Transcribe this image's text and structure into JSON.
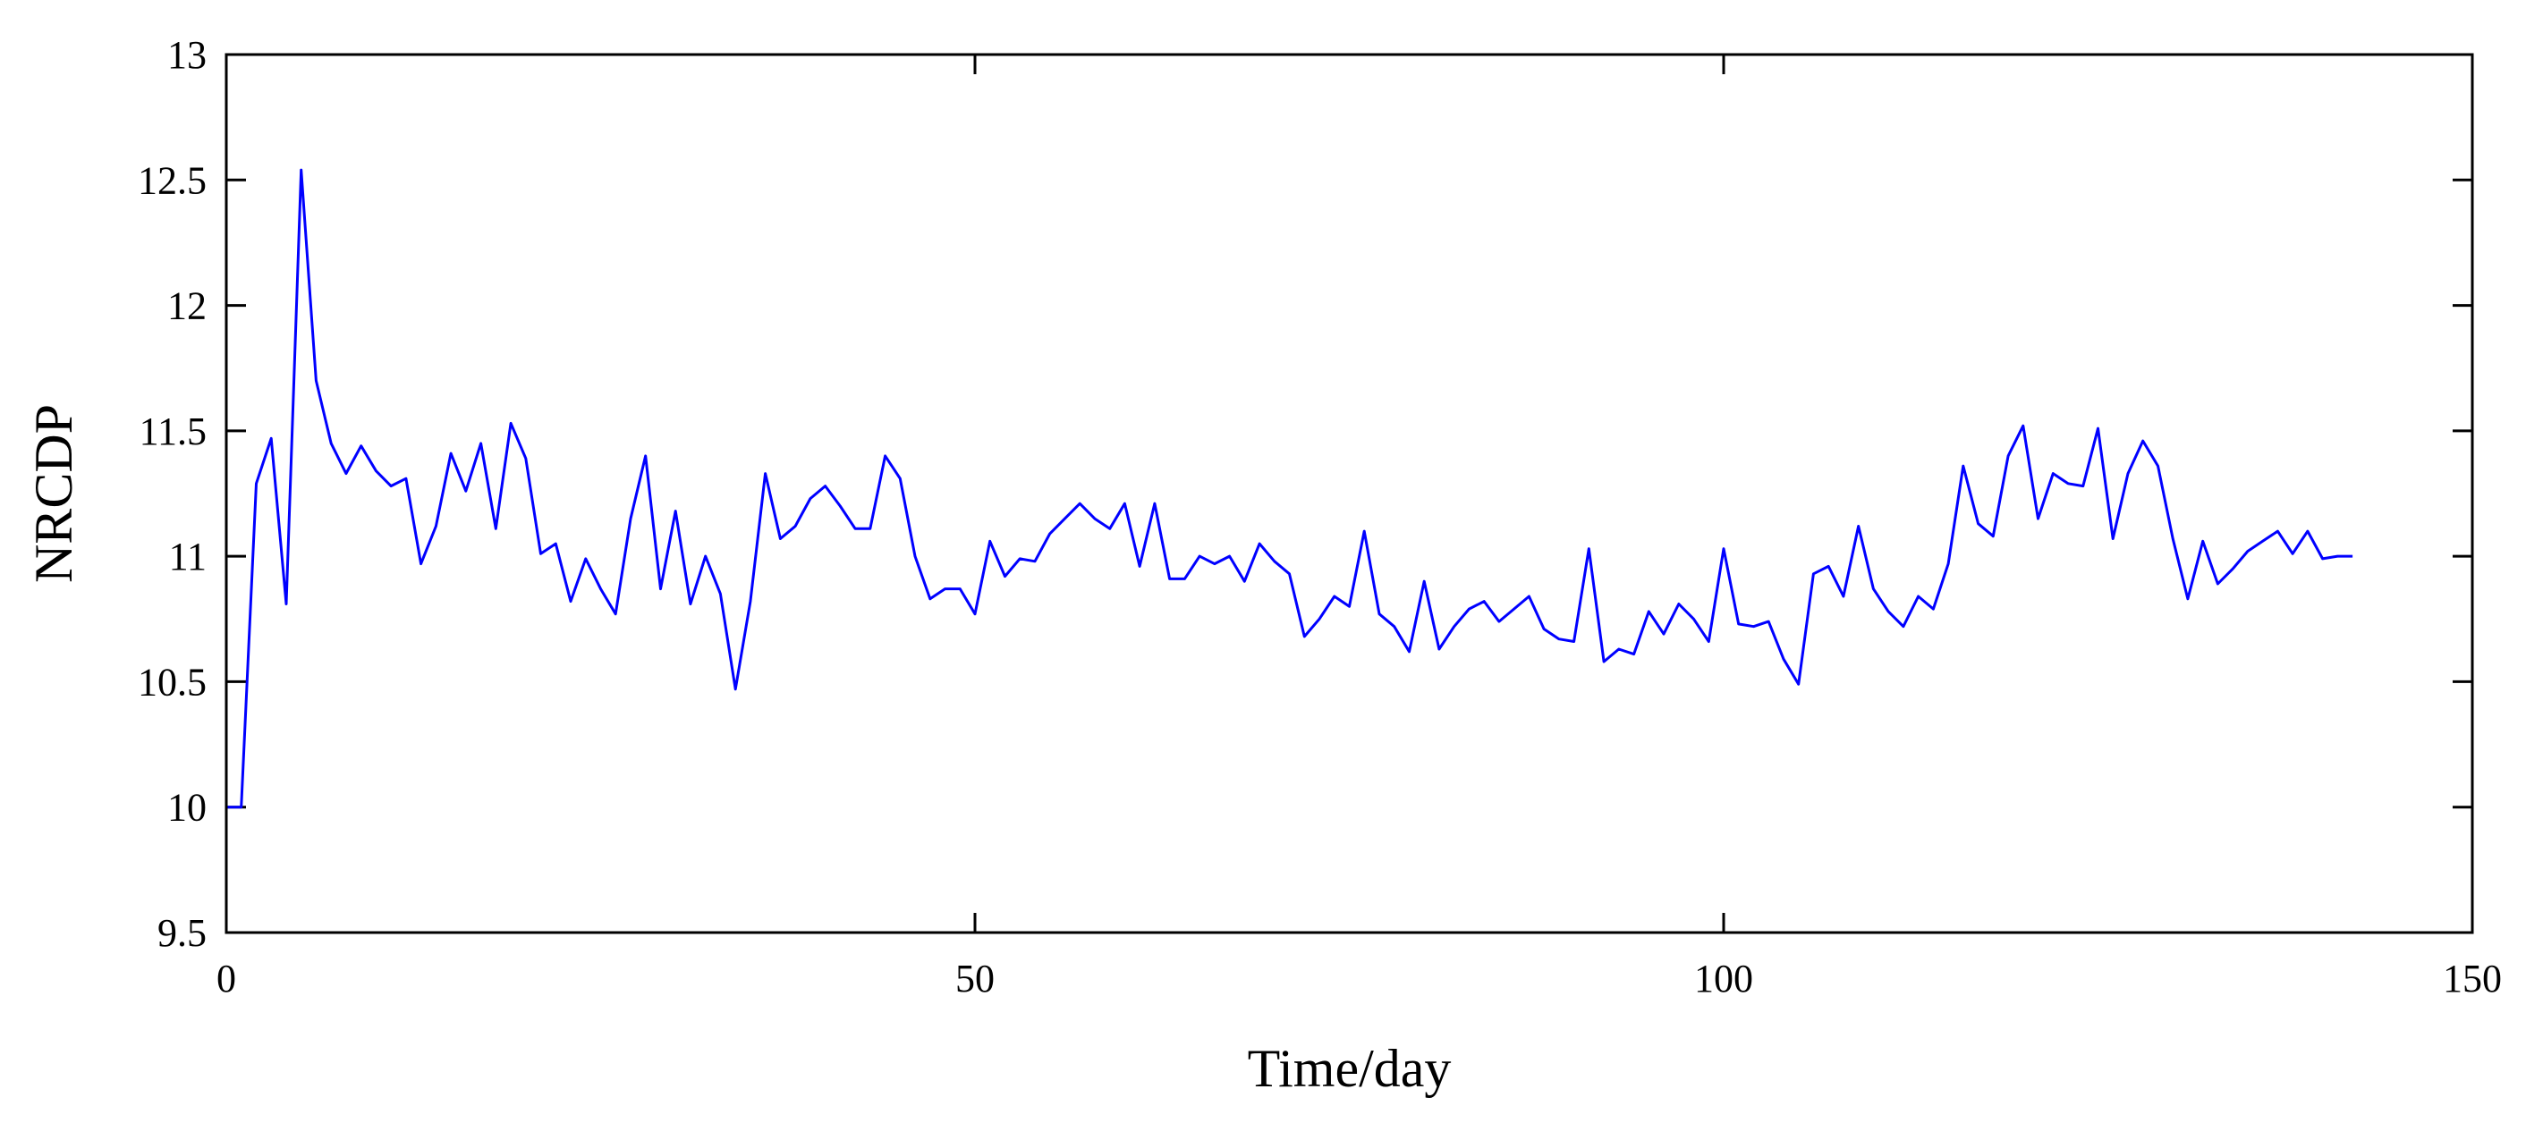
{
  "chart_data": {
    "type": "line",
    "title": "",
    "xlabel": "Time/day",
    "ylabel": "NRCDP",
    "xlim": [
      0,
      150
    ],
    "ylim": [
      9.5,
      13
    ],
    "xticks": [
      0,
      50,
      100,
      150
    ],
    "xtick_labels": [
      "0",
      "50",
      "100",
      "150"
    ],
    "yticks": [
      9.5,
      10,
      10.5,
      11,
      11.5,
      12,
      12.5,
      13
    ],
    "ytick_labels": [
      "9.5",
      "10",
      "10.5",
      "11",
      "11.5",
      "12",
      "12.5",
      "13"
    ],
    "grid": false,
    "legend": "none",
    "series": [
      {
        "color": "#0000ff",
        "x": [
          0,
          1,
          2,
          3,
          4,
          5,
          6,
          7,
          8,
          9,
          10,
          11,
          12,
          13,
          14,
          15,
          16,
          17,
          18,
          19,
          20,
          21,
          22,
          23,
          24,
          25,
          26,
          27,
          28,
          29,
          30,
          31,
          32,
          33,
          34,
          35,
          36,
          37,
          38,
          39,
          40,
          41,
          42,
          43,
          44,
          45,
          46,
          47,
          48,
          49,
          50,
          51,
          52,
          53,
          54,
          55,
          56,
          57,
          58,
          59,
          60,
          61,
          62,
          63,
          64,
          65,
          66,
          67,
          68,
          69,
          70,
          71,
          72,
          73,
          74,
          75,
          76,
          77,
          78,
          79,
          80,
          81,
          82,
          83,
          84,
          85,
          86,
          87,
          88,
          89,
          90,
          91,
          92,
          93,
          94,
          95,
          96,
          97,
          98,
          99,
          100,
          101,
          102,
          103,
          104,
          105,
          106,
          107,
          108,
          109,
          110,
          111,
          112,
          113,
          114,
          115,
          116,
          117,
          118,
          119,
          120,
          121,
          122,
          123,
          124,
          125,
          126,
          127,
          128,
          129,
          130,
          131,
          132,
          133,
          134,
          135,
          136,
          137,
          138,
          139,
          140,
          141,
          142
        ],
        "y": [
          10.0,
          10.0,
          11.29,
          11.47,
          10.81,
          12.54,
          11.7,
          11.45,
          11.33,
          11.44,
          11.34,
          11.28,
          11.31,
          10.97,
          11.12,
          11.41,
          11.26,
          11.45,
          11.11,
          11.53,
          11.39,
          11.01,
          11.05,
          10.82,
          10.99,
          10.87,
          10.77,
          11.15,
          11.4,
          10.87,
          11.18,
          10.81,
          11.0,
          10.85,
          10.47,
          10.82,
          11.33,
          11.07,
          11.12,
          11.23,
          11.28,
          11.2,
          11.11,
          11.11,
          11.4,
          11.31,
          11.0,
          10.83,
          10.87,
          10.87,
          10.77,
          11.06,
          10.92,
          10.99,
          10.98,
          11.09,
          11.15,
          11.21,
          11.15,
          11.11,
          11.21,
          10.96,
          11.21,
          10.91,
          10.91,
          11.0,
          10.97,
          11.0,
          10.9,
          11.05,
          10.98,
          10.93,
          10.68,
          10.75,
          10.84,
          10.8,
          11.1,
          10.77,
          10.72,
          10.62,
          10.9,
          10.63,
          10.72,
          10.79,
          10.82,
          10.74,
          10.79,
          10.84,
          10.71,
          10.67,
          10.66,
          11.03,
          10.58,
          10.63,
          10.61,
          10.78,
          10.69,
          10.81,
          10.75,
          10.66,
          11.03,
          10.73,
          10.72,
          10.74,
          10.59,
          10.49,
          10.93,
          10.96,
          10.84,
          11.12,
          10.87,
          10.78,
          10.72,
          10.84,
          10.79,
          10.97,
          11.36,
          11.13,
          11.08,
          11.4,
          11.52,
          11.15,
          11.33,
          11.29,
          11.28,
          11.51,
          11.07,
          11.33,
          11.46,
          11.36,
          11.07,
          10.83,
          11.06,
          10.89,
          10.95,
          11.02,
          11.06,
          11.1,
          11.01,
          11.1,
          10.99,
          11.0,
          11.0
        ]
      }
    ]
  }
}
